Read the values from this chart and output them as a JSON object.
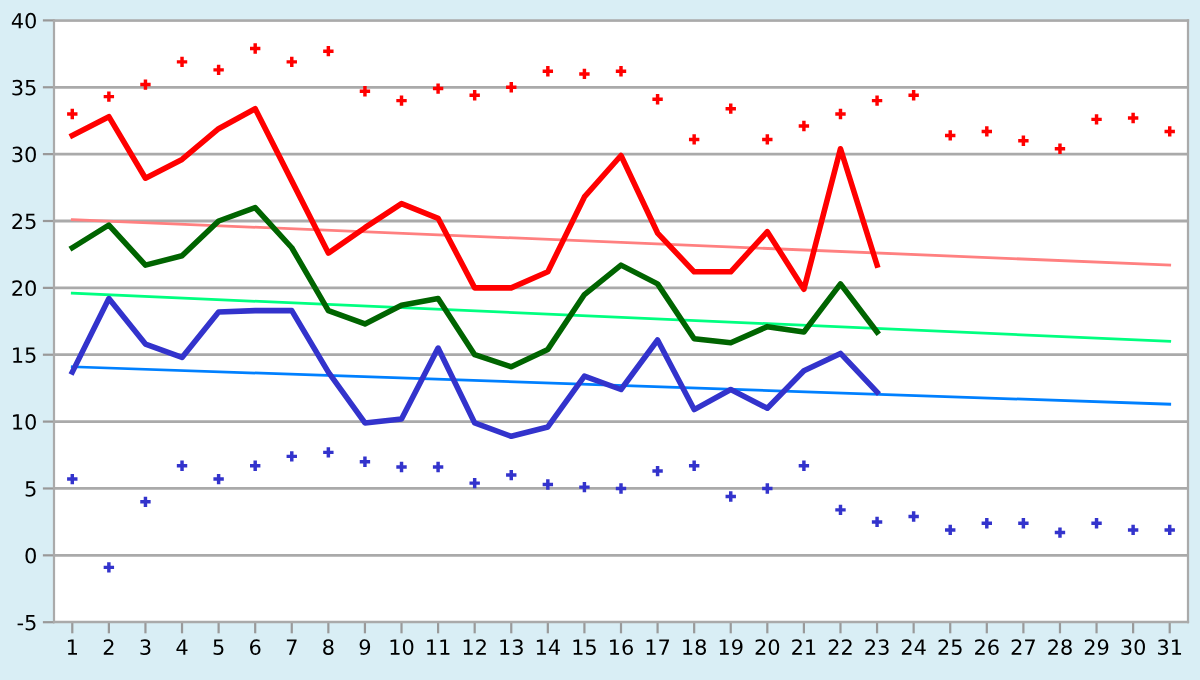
{
  "chart_data": {
    "type": "line",
    "x": [
      1,
      2,
      3,
      4,
      5,
      6,
      7,
      8,
      9,
      10,
      11,
      12,
      13,
      14,
      15,
      16,
      17,
      18,
      19,
      20,
      21,
      22,
      23
    ],
    "series": [
      {
        "type": "scatter",
        "color": "#ff0000",
        "marker": "cross",
        "x": [
          1,
          2,
          3,
          4,
          5,
          6,
          7,
          8,
          9,
          10,
          11,
          12,
          13,
          14,
          15,
          16,
          17,
          18,
          19,
          20,
          21,
          22,
          23,
          24,
          25,
          26,
          27,
          28,
          29,
          30,
          31
        ],
        "values": [
          33,
          34.3,
          35.2,
          36.9,
          36.3,
          37.9,
          36.9,
          37.7,
          34.7,
          34,
          34.9,
          34.4,
          35,
          36.2,
          36,
          36.2,
          34.1,
          31.1,
          33.4,
          31.1,
          32.1,
          33,
          34,
          34.4,
          31.4,
          31.7,
          31,
          30.4,
          32.6,
          32.7,
          31.7
        ]
      },
      {
        "type": "scatter",
        "color": "#3333cc",
        "marker": "cross",
        "x": [
          1,
          2,
          3,
          4,
          5,
          6,
          7,
          8,
          9,
          10,
          11,
          12,
          13,
          14,
          15,
          16,
          17,
          18,
          19,
          20,
          21,
          22,
          23,
          24,
          25,
          26,
          27,
          28,
          29,
          30,
          31
        ],
        "values": [
          5.7,
          -0.9,
          4,
          6.7,
          5.7,
          6.7,
          7.4,
          7.7,
          7,
          6.6,
          6.6,
          5.4,
          6,
          5.3,
          5.1,
          5,
          6.3,
          6.7,
          4.4,
          5,
          6.7,
          3.4,
          2.5,
          2.9,
          1.9,
          2.4,
          2.4,
          1.7,
          2.4,
          1.9,
          1.9
        ]
      },
      {
        "color": "#ff8080",
        "x": [
          1,
          31
        ],
        "values": [
          25.1,
          21.7
        ]
      },
      {
        "color": "#00ff80",
        "x": [
          1,
          31
        ],
        "values": [
          19.6,
          16
        ]
      },
      {
        "color": "#0080ff",
        "x": [
          1,
          31
        ],
        "values": [
          14.1,
          11.3
        ]
      },
      {
        "color": "#ff0000",
        "values": [
          31.4,
          32.8,
          28.2,
          29.6,
          31.9,
          33.4,
          28,
          22.6,
          24.5,
          26.3,
          25.2,
          20,
          20,
          21.2,
          26.8,
          29.9,
          24.1,
          21.2,
          21.2,
          24.2,
          19.9,
          30.4,
          21.7
        ]
      },
      {
        "color": "#006400",
        "values": [
          23,
          24.7,
          21.7,
          22.4,
          25,
          26,
          23,
          18.3,
          17.3,
          18.7,
          19.2,
          15,
          14.1,
          15.4,
          19.5,
          21.7,
          20.3,
          16.2,
          15.9,
          17.1,
          16.7,
          20.3,
          16.7
        ]
      },
      {
        "color": "#3333cc",
        "values": [
          13.7,
          19.2,
          15.8,
          14.8,
          18.2,
          18.3,
          18.3,
          13.7,
          9.9,
          10.2,
          15.5,
          9.9,
          8.9,
          9.6,
          13.4,
          12.4,
          16.1,
          10.9,
          12.4,
          11,
          13.8,
          15.1,
          12.2
        ]
      }
    ],
    "xlim": [
      0.5,
      31.5
    ],
    "xticks": [
      1,
      2,
      3,
      4,
      5,
      6,
      7,
      8,
      9,
      10,
      11,
      12,
      13,
      14,
      15,
      16,
      17,
      18,
      19,
      20,
      21,
      22,
      23,
      24,
      25,
      26,
      27,
      28,
      29,
      30,
      31
    ],
    "ylim": [
      -5,
      40
    ],
    "yticks": [
      -5,
      0,
      5,
      10,
      15,
      20,
      25,
      30,
      35,
      40
    ],
    "grid": "y"
  }
}
